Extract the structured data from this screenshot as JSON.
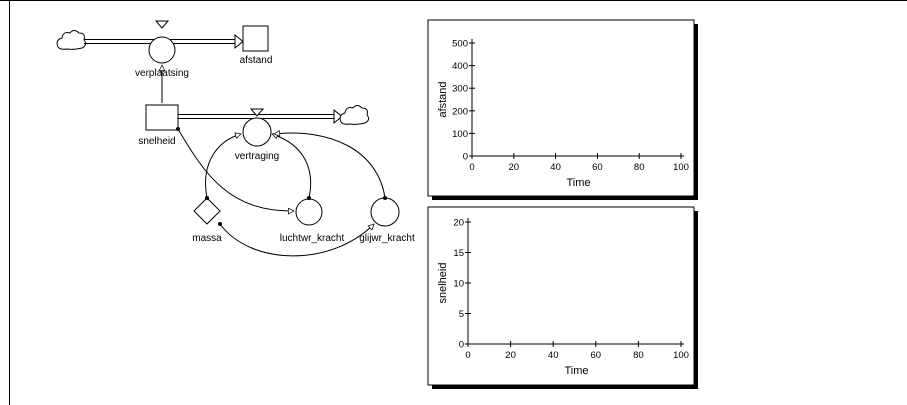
{
  "model": {
    "stocks": [
      "afstand",
      "snelheid"
    ],
    "flows": [
      "verplaatsing",
      "vertraging"
    ],
    "auxiliaries": [
      "luchtwr_kracht",
      "glijwr_kracht"
    ],
    "constants": [
      "massa"
    ]
  },
  "chart_data": [
    {
      "type": "line",
      "xlabel": "Time",
      "ylabel": "afstand",
      "xlim": [
        0,
        100
      ],
      "ylim": [
        0,
        500
      ],
      "xticks": [
        "0",
        "20",
        "40",
        "60",
        "80",
        "100"
      ],
      "yticks": [
        "0",
        "100",
        "200",
        "300",
        "400",
        "500"
      ],
      "series": [
        {
          "values": []
        }
      ],
      "grid": false
    },
    {
      "type": "line",
      "xlabel": "Time",
      "ylabel": "snelheid",
      "xlim": [
        0,
        100
      ],
      "ylim": [
        0,
        20
      ],
      "xticks": [
        "0",
        "20",
        "40",
        "60",
        "80",
        "100"
      ],
      "yticks": [
        "0",
        "5",
        "10",
        "15",
        "20"
      ],
      "series": [
        {
          "values": []
        }
      ],
      "grid": false
    }
  ]
}
